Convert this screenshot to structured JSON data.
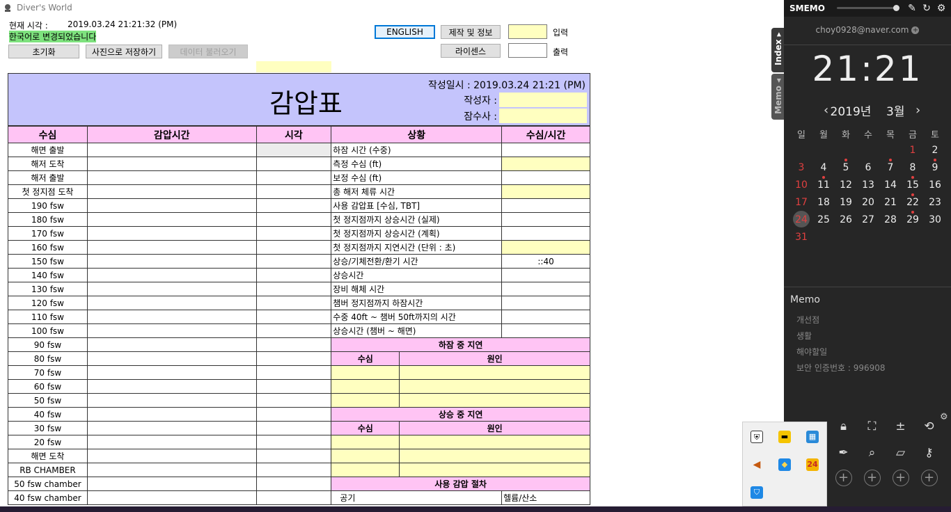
{
  "window": {
    "title": "Diver's World"
  },
  "header": {
    "time_label": "현재 시각 :",
    "time_value": "2019.03.24 21:21:32 (PM)",
    "status_message": "한국어로 변경되었습니다",
    "reset_button": "초기화",
    "save_image_button": "사진으로 저장하기",
    "load_data_button": "데이터 불러오기",
    "english_button": "ENGLISH",
    "about_button": "제작 및 정보",
    "license_button": "라이센스",
    "input_label": "입력",
    "output_label": "출력"
  },
  "sheet": {
    "title": "감압표",
    "created_at": "작성일시 : 2019.03.24 21:21 (PM)",
    "author_label": "작성자 :",
    "diver_label": "잠수사 :",
    "columns": [
      "수심",
      "감압시간",
      "시각",
      "상황",
      "수심/시간"
    ],
    "depth_rows": [
      "해면 출발",
      "해저 도착",
      "해저 출발",
      "첫 정지점 도착",
      "190 fsw",
      "180 fsw",
      "170 fsw",
      "160 fsw",
      "150 fsw",
      "140 fsw",
      "130 fsw",
      "120 fsw",
      "110 fsw",
      "100 fsw",
      "90 fsw",
      "80 fsw",
      "70 fsw",
      "60 fsw",
      "50 fsw",
      "40 fsw",
      "30 fsw",
      "20 fsw",
      "해면 도착",
      "RB CHAMBER",
      "50 fsw chamber",
      "40 fsw chamber"
    ],
    "situations": [
      "하잠 시간 (수중)",
      "측정 수심 (ft)",
      "보정 수심 (ft)",
      "총 해저 체류 시간",
      "사용 감압표 [수심, TBT]",
      "첫 정지점까지 상승시간 (실제)",
      "첫 정지점까지 상승시간 (계획)",
      "첫 정지점까지 지연시간 (단위 : 초)",
      "상승/기체전환/환기 시간",
      "상승시간",
      "장비 해체 시간",
      "챔버 정지점까지 하잠시간",
      "수중 40ft ~ 챔버 50ft까지의 시간",
      "상승시간 (챔버 ~ 해면)"
    ],
    "situation_value_8": "::40",
    "descent_delay_title": "하잠 중 지연",
    "ascent_delay_title": "상승 중 지연",
    "delay_depth": "수심",
    "delay_cause": "원인",
    "procedure_title": "사용 감압 절차",
    "air_label": "공기",
    "heliox_label": "헬륨/산소"
  },
  "smemo": {
    "app_name": "SMEMO",
    "email": "choy0928@naver.com",
    "clock": "21:21",
    "year_label": "2019년",
    "month_label": "3월",
    "weekdays": [
      "일",
      "월",
      "화",
      "수",
      "목",
      "금",
      "토"
    ],
    "days": [
      "",
      "",
      "",
      "",
      "",
      "1",
      "2",
      "3",
      "4",
      "5",
      "6",
      "7",
      "8",
      "9",
      "10",
      "11",
      "12",
      "13",
      "14",
      "15",
      "16",
      "17",
      "18",
      "19",
      "20",
      "21",
      "22",
      "23",
      "24",
      "25",
      "26",
      "27",
      "28",
      "29",
      "30",
      "31"
    ],
    "memo_title": "Memo",
    "memo_items": [
      "개선점",
      "생활",
      "해야할일",
      "보안 인증번호 : 996908"
    ],
    "tab_index": "Index ▸",
    "tab_memo": "Memo ◂"
  },
  "tray": {
    "calendar_badge": "24"
  },
  "colors": {
    "sheet_header": "#c4c4fc",
    "pink_header": "#ffc4f4",
    "input_yellow": "#ffffc0",
    "status_green": "#7ee27e",
    "panel_bg": "#262626",
    "sunday_red": "#e04040"
  }
}
